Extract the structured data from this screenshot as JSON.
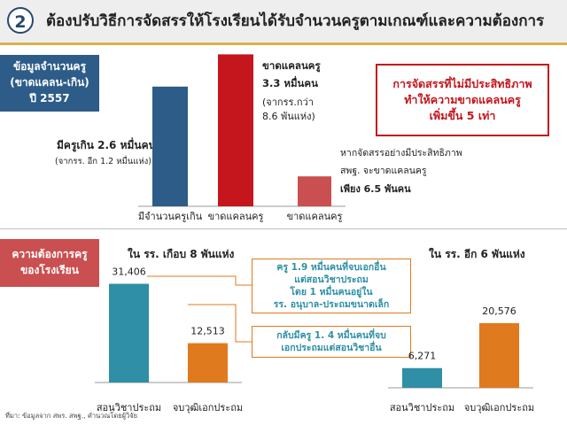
{
  "header": {
    "number": "2",
    "title": "ต้องปรับวิธีการจัดสรรให้โรงเรียนได้รับจำนวนครูตามเกณฑ์และความต้องการ"
  },
  "top_section": {
    "side_label": [
      "ข้อมูลจำนวนครู",
      "(ขาดแคลน-เกิน)",
      "ปี 2557"
    ],
    "surplus_line1": "มีครูเกิน 2.6 หมื่นคน",
    "surplus_line2": "(จากรร. อีก 1.2 หมื่นแห่ง)",
    "shortage_line1": "ขาดแคลนครู",
    "shortage_line2": "3.3 หมื่นคน",
    "shortage_line3": "(จากรร.กว่า",
    "shortage_line4": "8.6 พันแห่ง)",
    "scenario_line1": "หากจัดสรรอย่างมีประสิทธิภาพ",
    "scenario_line2": "สพฐ. จะขาดแคลนครู",
    "scenario_line3": "เพียง 6.5 พันคน",
    "callout": [
      "การจัดสรรที่ไม่มีประสิทธิภาพ",
      "ทำให้ความขาดแคลนครู",
      "เพิ่มขึ้น 5 เท่า"
    ]
  },
  "bottom_section": {
    "side_label": [
      "ความต้องการครู",
      "ของโรงเรียน"
    ],
    "left_title": "ใน รร. เกือบ 8 พันแห่ง",
    "right_title": "ใน รร. อีก 6 พันแห่ง",
    "box1": [
      "ครู 1.9 หมื่นคนที่จบเอกอื่น",
      "แต่สอนวิชาประถม",
      "โดย 1 หมื่นคนอยู่ใน",
      "รร. อนุบาล-ประถมขนาดเล็ก"
    ],
    "box2": [
      "กลับมีครู 1. 4 หมื่นคนที่จบ",
      "เอกประถมแต่สอนวิชาอื่น"
    ]
  },
  "source": "ที่มา: ข้อมูลจาก สพร. สพฐ., คำนวณโดยผู้วิจัย",
  "colors": {
    "header_badge": "#29486f",
    "bar_blue": "#2d5c88",
    "bar_red": "#c4161c",
    "bar_red_light": "#c94f50",
    "bar_teal": "#2e8fa6",
    "bar_orange": "#e07a1f",
    "side_top": "#2d5c88",
    "side_bottom": "#c94f50"
  },
  "chart_data": [
    {
      "type": "bar",
      "categories": [
        "มีจำนวนครูเกิน",
        "ขาดแคลนครู",
        "ขาดแคลนครู"
      ],
      "values": [
        26000,
        33000,
        6500
      ],
      "colors": [
        "#2d5c88",
        "#c4161c",
        "#c94f50"
      ],
      "ylim": [
        0,
        36000
      ]
    },
    {
      "type": "bar",
      "title": "ใน รร. เกือบ 8 พันแห่ง",
      "categories": [
        "สอนวิชาประถม",
        "จบวุฒิเอกประถม"
      ],
      "values": [
        31406,
        12513
      ],
      "value_labels": [
        "31,406",
        "12,513"
      ],
      "colors": [
        "#2e8fa6",
        "#e07a1f"
      ],
      "ylim": [
        0,
        35000
      ]
    },
    {
      "type": "bar",
      "title": "ใน รร. อีก 6 พันแห่ง",
      "categories": [
        "สอนวิชาประถม",
        "จบวุฒิเอกประถม"
      ],
      "values": [
        6271,
        20576
      ],
      "value_labels": [
        "6,271",
        "20,576"
      ],
      "colors": [
        "#2e8fa6",
        "#e07a1f"
      ],
      "ylim": [
        0,
        35000
      ]
    }
  ]
}
